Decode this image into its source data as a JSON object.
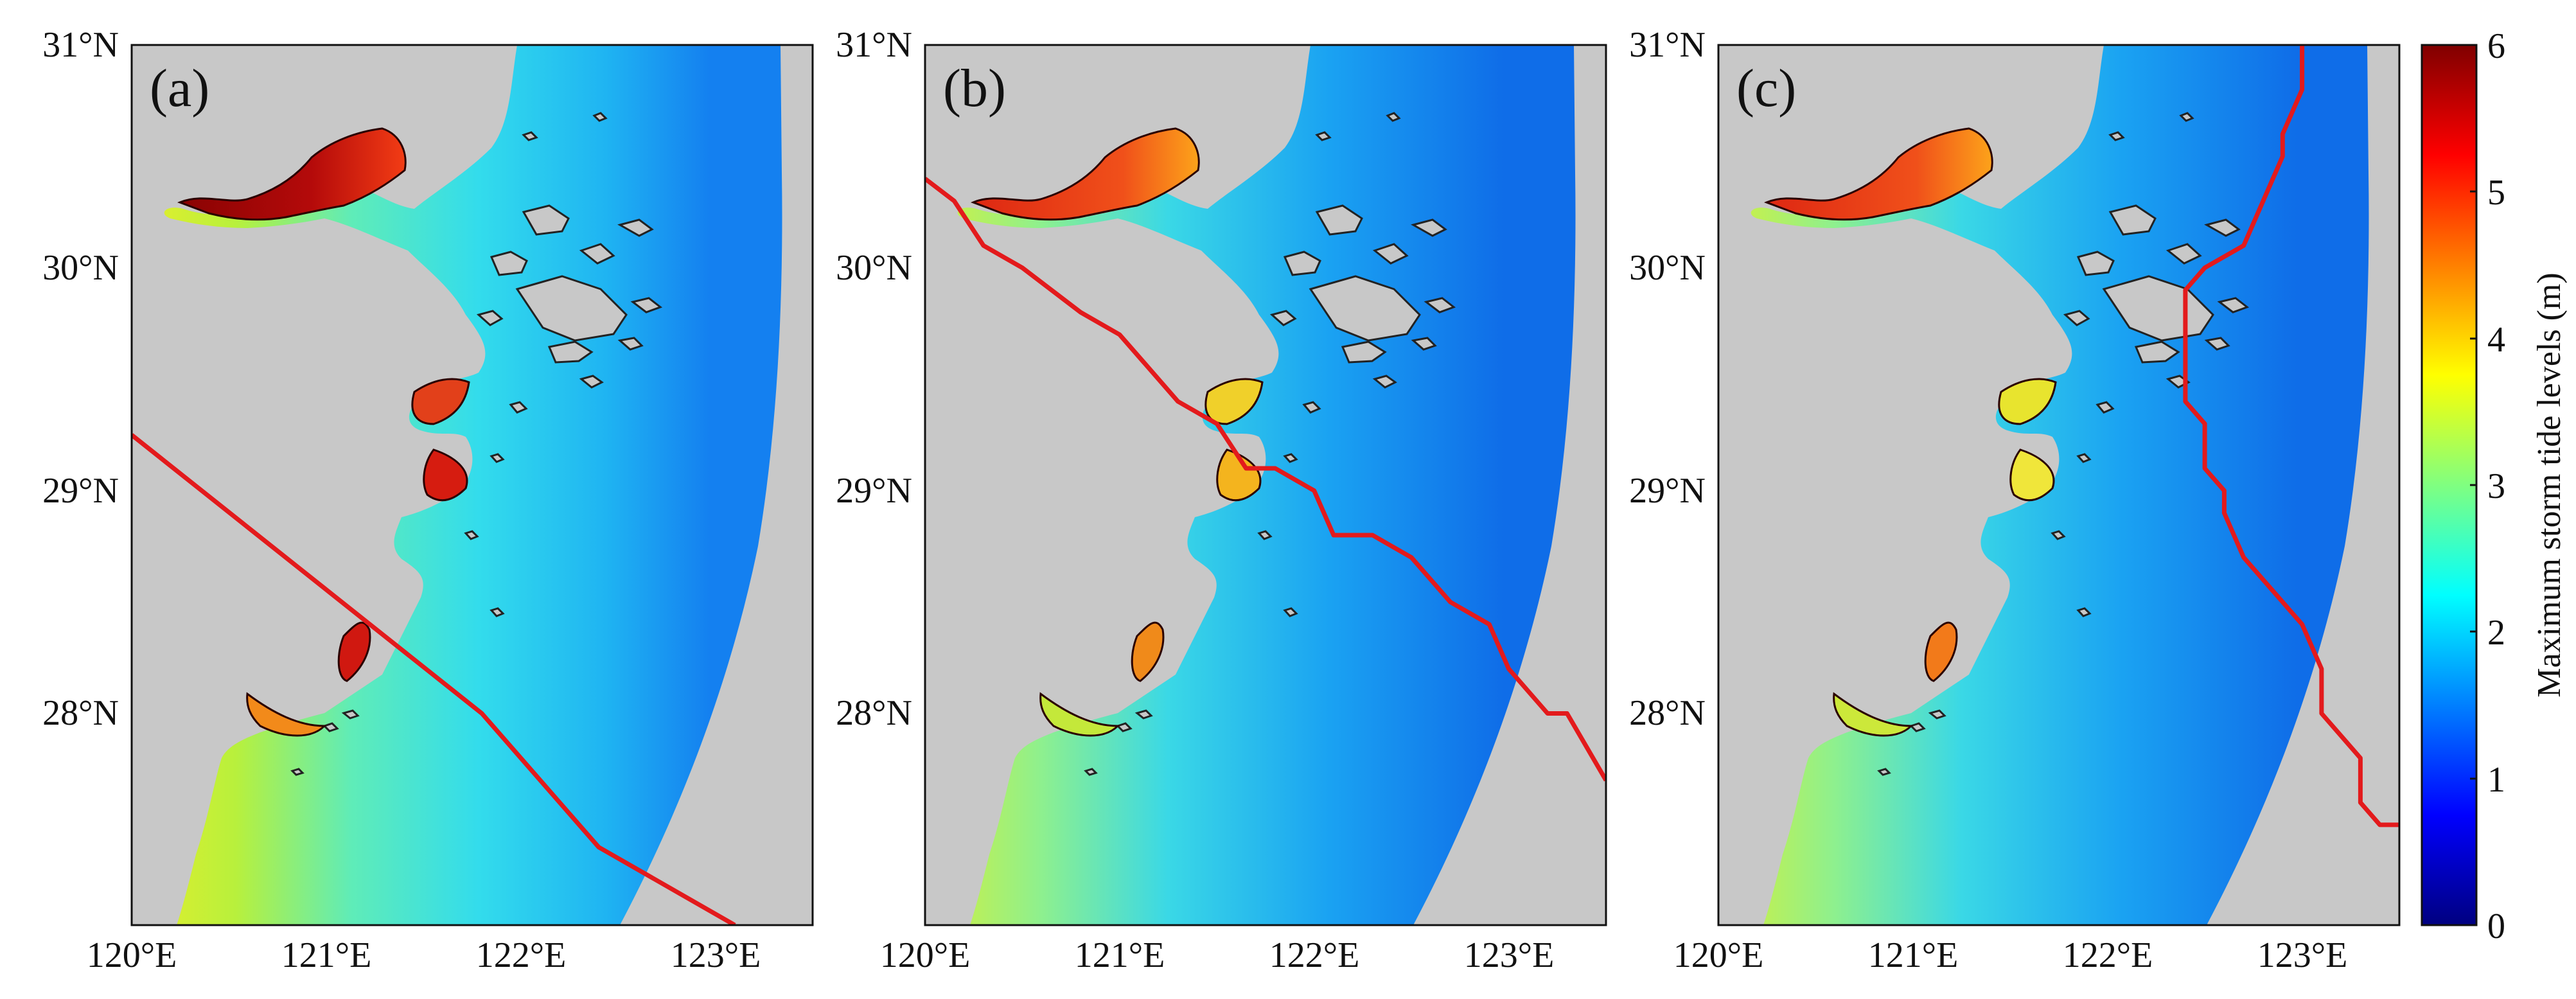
{
  "figure": {
    "panels": [
      {
        "label": "(a)"
      },
      {
        "label": "(b)"
      },
      {
        "label": "(c)"
      }
    ],
    "x_tick_labels": [
      "120°E",
      "121°E",
      "122°E",
      "123°E"
    ],
    "y_tick_labels": [
      "31°N",
      "30°N",
      "29°N",
      "28°N"
    ],
    "colorbar": {
      "label": "Maximum storm tide levels (m)",
      "ticks": [
        "6",
        "5",
        "4",
        "3",
        "2",
        "1",
        "0"
      ],
      "range": [
        0,
        6
      ],
      "colormap": "jet"
    },
    "colors": {
      "land": "#c8c8c8",
      "track": "#e31a1c",
      "sea_near": "#3fe3d8",
      "sea_far": "#1a8ff0",
      "coast_warm": "#f2e02a",
      "estuary_hot": "#8b0000"
    },
    "map_extent": {
      "lon": [
        120,
        123.5
      ],
      "lat": [
        27.05,
        31
      ]
    },
    "tracks": [
      [
        [
          120,
          29.25
        ],
        [
          121.8,
          28.0
        ],
        [
          122.4,
          27.4
        ],
        [
          123.1,
          27.05
        ]
      ],
      [
        [
          120,
          30.4
        ],
        [
          120.15,
          30.3
        ],
        [
          120.3,
          30.1
        ],
        [
          120.5,
          30.0
        ],
        [
          120.8,
          29.8
        ],
        [
          121.0,
          29.7
        ],
        [
          121.3,
          29.4
        ],
        [
          121.5,
          29.3
        ],
        [
          121.65,
          29.1
        ],
        [
          121.8,
          29.1
        ],
        [
          122.0,
          29.0
        ],
        [
          122.1,
          28.8
        ],
        [
          122.3,
          28.8
        ],
        [
          122.5,
          28.7
        ],
        [
          122.7,
          28.5
        ],
        [
          122.9,
          28.4
        ],
        [
          123.0,
          28.2
        ],
        [
          123.2,
          28.0
        ],
        [
          123.3,
          28.0
        ],
        [
          123.5,
          27.7
        ]
      ],
      [
        [
          123.0,
          31.0
        ],
        [
          123.0,
          30.8
        ],
        [
          122.9,
          30.6
        ],
        [
          122.9,
          30.5
        ],
        [
          122.7,
          30.1
        ],
        [
          122.5,
          30.0
        ],
        [
          122.4,
          29.9
        ],
        [
          122.4,
          29.4
        ],
        [
          122.5,
          29.3
        ],
        [
          122.5,
          29.1
        ],
        [
          122.6,
          29.0
        ],
        [
          122.6,
          28.9
        ],
        [
          122.7,
          28.7
        ],
        [
          122.9,
          28.5
        ],
        [
          123.0,
          28.4
        ],
        [
          123.1,
          28.2
        ],
        [
          123.1,
          28.0
        ],
        [
          123.3,
          27.8
        ],
        [
          123.3,
          27.6
        ],
        [
          123.4,
          27.5
        ],
        [
          123.5,
          27.5
        ]
      ]
    ]
  }
}
